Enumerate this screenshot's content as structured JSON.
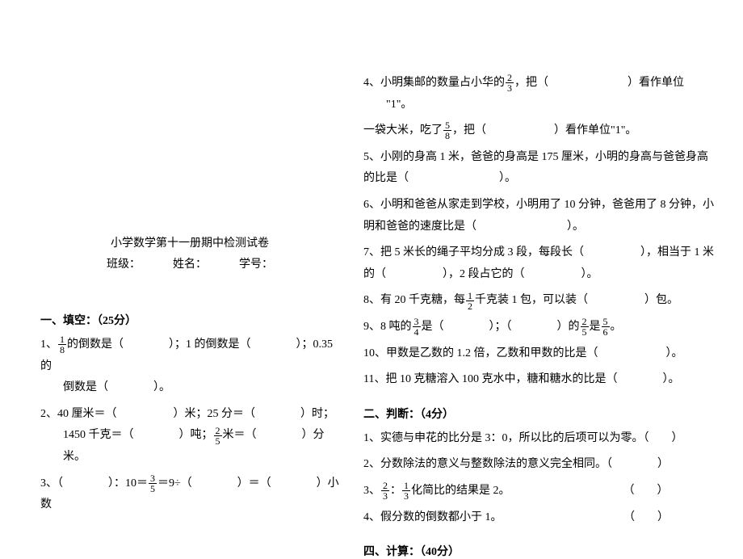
{
  "title": "小学数学第十一册期中检测试卷",
  "class_label": "班级：",
  "name_label": "姓名：",
  "id_label": "学号：",
  "section1": {
    "heading": "一、填空：（25分）",
    "q1_a": "1、",
    "q1_frac_num": "1",
    "q1_frac_den": "8",
    "q1_b": "的倒数是（　　　　）；1 的倒数是（　　　　）；0.35 的",
    "q1_c": "倒数是（　　　　）。",
    "q2_a": "2、40 厘米＝（　　　　　）米；25 分＝（　　　　）时；",
    "q2_b": "1450 千克＝（　　　　）吨；",
    "q2_frac_num": "2",
    "q2_frac_den": "5",
    "q2_c": "米＝（　　　　）分米。",
    "q3_a": "3、（　　　　）：10＝",
    "q3_frac_num": "3",
    "q3_frac_den": "5",
    "q3_b": "＝9÷（　　　　）＝（　　　　）小数"
  },
  "section1b": {
    "q4_a": "4、小明集邮的数量占小华的",
    "q4_frac_num": "2",
    "q4_frac_den": "3",
    "q4_b": "，把（　　　　　　　）看作单位",
    "q4_c": "\"1\"。",
    "q4_d": "一袋大米，吃了",
    "q4_frac2_num": "5",
    "q4_frac2_den": "8",
    "q4_e": "，把（　　　　　　）看作单位\"1\"。",
    "q5": "5、小刚的身高 1 米，爸爸的身高是 175 厘米，小明的身高与爸爸身高的比是（　　　　　　　　）。",
    "q6": "6、小明和爸爸从家走到学校，小明用了 10 分钟，爸爸用了 8 分钟，小明和爸爸的速度比是（　　　　　　　　）。",
    "q7": "7、把 5 米长的绳子平均分成 3 段，每段长（　　　　　），相当于 1 米的（　　　　　），2 段占它的（　　　　　）。",
    "q8_a": "8、有 20 千克糖，每",
    "q8_frac_num": "1",
    "q8_frac_den": "2",
    "q8_b": "千克装 1 包，可以装（　　　　　）包。",
    "q9_a": "9、8 吨的",
    "q9_frac1_num": "3",
    "q9_frac1_den": "4",
    "q9_b": "是（　　　　）；（　　　　）的",
    "q9_frac2_num": "2",
    "q9_frac2_den": "5",
    "q9_c": "是",
    "q9_frac3_num": "5",
    "q9_frac3_den": "6",
    "q9_d": "。",
    "q10": "10、甲数是乙数的 1.2 倍，乙数和甲数的比是（　　　　　　）。",
    "q11": "11、把 10 克糖溶入 100 克水中，糖和糖水的比是（　　　　）。"
  },
  "section2": {
    "heading": "二、判断：（4分）",
    "q1": "1、实德与申花的比分是 3：0，所以比的后项可以为零。（　　）",
    "q2": "2、分数除法的意义与整数除法的意义完全相同。（　　　　）",
    "q3_a": "3、",
    "q3_frac1_num": "2",
    "q3_frac1_den": "3",
    "q3_b": "：",
    "q3_frac2_num": "1",
    "q3_frac2_den": "3",
    "q3_c": "化简比的结果是 2。　　　　　　　　　　　（　　）",
    "q4": "4、假分数的倒数都小于 1。　　　　　　　　　　　 （　　）"
  },
  "section4": {
    "heading": "四、计算：（40分）"
  }
}
